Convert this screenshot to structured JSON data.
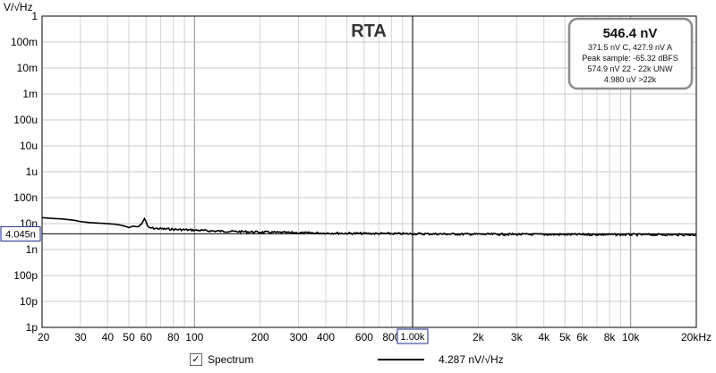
{
  "chart_data": {
    "type": "line",
    "title": "RTA",
    "y_unit": "V/√Hz",
    "x_scale": "log",
    "y_scale": "log",
    "xlim": [
      20,
      20000
    ],
    "ylim": [
      1e-12,
      1
    ],
    "x_ticks": [
      {
        "v": 20,
        "label": "20"
      },
      {
        "v": 30,
        "label": "30"
      },
      {
        "v": 40,
        "label": "40"
      },
      {
        "v": 50,
        "label": "50"
      },
      {
        "v": 60,
        "label": "60"
      },
      {
        "v": 80,
        "label": "80"
      },
      {
        "v": 100,
        "label": "100"
      },
      {
        "v": 200,
        "label": "200"
      },
      {
        "v": 300,
        "label": "300"
      },
      {
        "v": 400,
        "label": "400"
      },
      {
        "v": 600,
        "label": "600"
      },
      {
        "v": 800,
        "label": "800"
      },
      {
        "v": 2000,
        "label": "2k"
      },
      {
        "v": 3000,
        "label": "3k"
      },
      {
        "v": 4000,
        "label": "4k"
      },
      {
        "v": 5000,
        "label": "5k"
      },
      {
        "v": 6000,
        "label": "6k"
      },
      {
        "v": 8000,
        "label": "8k"
      },
      {
        "v": 10000,
        "label": "10k"
      },
      {
        "v": 20000,
        "label": "20kHz"
      }
    ],
    "y_ticks": [
      {
        "v": 1,
        "label": "1"
      },
      {
        "v": 0.1,
        "label": "100m"
      },
      {
        "v": 0.01,
        "label": "10m"
      },
      {
        "v": 0.001,
        "label": "1m"
      },
      {
        "v": 0.0001,
        "label": "100u"
      },
      {
        "v": 1e-05,
        "label": "10u"
      },
      {
        "v": 1e-06,
        "label": "1u"
      },
      {
        "v": 1e-07,
        "label": "100n"
      },
      {
        "v": 1e-08,
        "label": "10n"
      },
      {
        "v": 1e-09,
        "label": "1n"
      },
      {
        "v": 1e-10,
        "label": "100p"
      },
      {
        "v": 1e-11,
        "label": "10p"
      },
      {
        "v": 1e-12,
        "label": "1p"
      }
    ],
    "cursor": {
      "x": 1000,
      "x_label": "1.00k",
      "y": 4.045e-09,
      "y_label": "4.045n"
    },
    "series": [
      {
        "name": "Spectrum",
        "color": "#000000",
        "x": [
          20,
          22,
          25,
          28,
          30,
          33,
          36,
          40,
          43,
          45,
          48,
          50,
          52,
          55,
          57,
          58,
          59,
          60,
          61,
          62,
          65,
          70,
          75,
          80,
          90,
          100,
          120,
          150,
          200,
          300,
          400,
          600,
          800,
          1000,
          1500,
          2000,
          3000,
          5000,
          8000,
          10000,
          15000,
          20000
        ],
        "y": [
          1.7e-08,
          1.6e-08,
          1.5e-08,
          1.35e-08,
          1.2e-08,
          1.1e-08,
          1.05e-08,
          1e-08,
          9.5e-09,
          9e-09,
          8e-09,
          7e-09,
          8e-09,
          7.5e-09,
          9e-09,
          1.2e-08,
          1.6e-08,
          1.2e-08,
          8e-09,
          7e-09,
          6.6e-09,
          6.3e-09,
          6.2e-09,
          6e-09,
          5.8e-09,
          5.6e-09,
          5.2e-09,
          5e-09,
          4.7e-09,
          4.4e-09,
          4.3e-09,
          4.15e-09,
          4.1e-09,
          4.045e-09,
          3.95e-09,
          3.9e-09,
          3.85e-09,
          3.8e-09,
          3.78e-09,
          3.76e-09,
          3.74e-09,
          3.7e-09
        ]
      }
    ],
    "grid": true,
    "legend": {
      "position": "bottom",
      "checked": true,
      "series_label": "Spectrum",
      "value_text": "4.287 nV/√Hz"
    },
    "info_box": {
      "main": "546.4 nV",
      "lines": [
        "371.5 nV C, 427.9 nV A",
        "Peak sample: -65.32 dBFS",
        "574.9 nV 22 - 22k UNW",
        "4.980 uV >22k"
      ]
    }
  }
}
